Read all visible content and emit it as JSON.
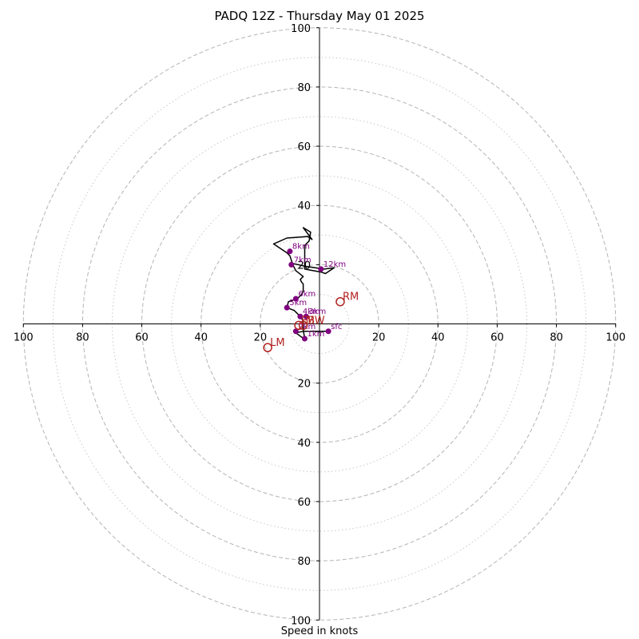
{
  "chart_data": {
    "type": "scatter",
    "subtype": "hodograph",
    "title": "PADQ 12Z - Thursday May 01 2025",
    "xlabel": "Speed in knots",
    "ylabel": "",
    "xlim": [
      -100,
      100
    ],
    "ylim": [
      -100,
      100
    ],
    "x_tick_labels": [
      "100",
      "80",
      "60",
      "40",
      "20",
      "20",
      "40",
      "60",
      "80",
      "100"
    ],
    "y_tick_labels": [
      "100",
      "80",
      "60",
      "40",
      "20",
      "20",
      "40",
      "60",
      "80",
      "100"
    ],
    "ring_speeds": [
      20,
      40,
      60,
      80,
      100
    ],
    "minor_ring_speeds": [
      10,
      30,
      50,
      70,
      90
    ],
    "grid": true,
    "trace": {
      "color": "#000000",
      "points": [
        [
          3,
          -2.5
        ],
        [
          -5.5,
          -2.5
        ],
        [
          -8,
          -3
        ],
        [
          -6,
          -4.5
        ],
        [
          -5,
          -5
        ],
        [
          -5.5,
          -2
        ],
        [
          -5.5,
          1
        ],
        [
          -6.5,
          2.5
        ],
        [
          -8.5,
          4.5
        ],
        [
          -11,
          5.5
        ],
        [
          -10.5,
          7.5
        ],
        [
          -9,
          8
        ],
        [
          -7.5,
          8.5
        ],
        [
          -6,
          10
        ],
        [
          -5.5,
          11
        ],
        [
          -5.5,
          13.5
        ],
        [
          -6,
          14
        ],
        [
          -6.5,
          15
        ],
        [
          -5.5,
          16
        ],
        [
          -8,
          18
        ],
        [
          -9,
          20
        ],
        [
          -10,
          23
        ],
        [
          -11,
          24
        ],
        [
          -15.5,
          27
        ],
        [
          -11,
          29
        ],
        [
          -4,
          29.5
        ],
        [
          -2.5,
          28.5
        ],
        [
          -5.5,
          32.5
        ],
        [
          -3,
          31
        ],
        [
          -3.5,
          28
        ],
        [
          -5,
          26.5
        ],
        [
          -5,
          18.5
        ],
        [
          0.5,
          17.5
        ],
        [
          2,
          17
        ],
        [
          5,
          19
        ],
        [
          1.5,
          18.5
        ],
        [
          -5,
          19.5
        ],
        [
          -9.5,
          20.5
        ]
      ]
    },
    "height_markers": {
      "color": "#800080",
      "points": [
        {
          "label": "sfc",
          "u": 3,
          "v": -2.5
        },
        {
          "label": "1km",
          "u": -5,
          "v": -5
        },
        {
          "label": "2km",
          "u": -8,
          "v": -2.5
        },
        {
          "label": "3km",
          "u": -4.5,
          "v": 2.5
        },
        {
          "label": "4km",
          "u": -6.5,
          "v": 2.5
        },
        {
          "label": "5km",
          "u": -11,
          "v": 5.5
        },
        {
          "label": "6km",
          "u": -8,
          "v": 8.5
        },
        {
          "label": "7km",
          "u": -9.5,
          "v": 20
        },
        {
          "label": "8km",
          "u": -10,
          "v": 24.5
        },
        {
          "label": "12km",
          "u": 0.5,
          "v": 18.5
        }
      ]
    },
    "storm_motions": {
      "color": "#b22222",
      "points": [
        {
          "label": "RM",
          "u": 7,
          "v": 7.5
        },
        {
          "label": "LM",
          "u": -17.5,
          "v": -8
        },
        {
          "label": "MW",
          "u": -5.5,
          "v": -0.5
        },
        {
          "label": "EB",
          "u": -7,
          "v": -0.5
        }
      ]
    }
  }
}
